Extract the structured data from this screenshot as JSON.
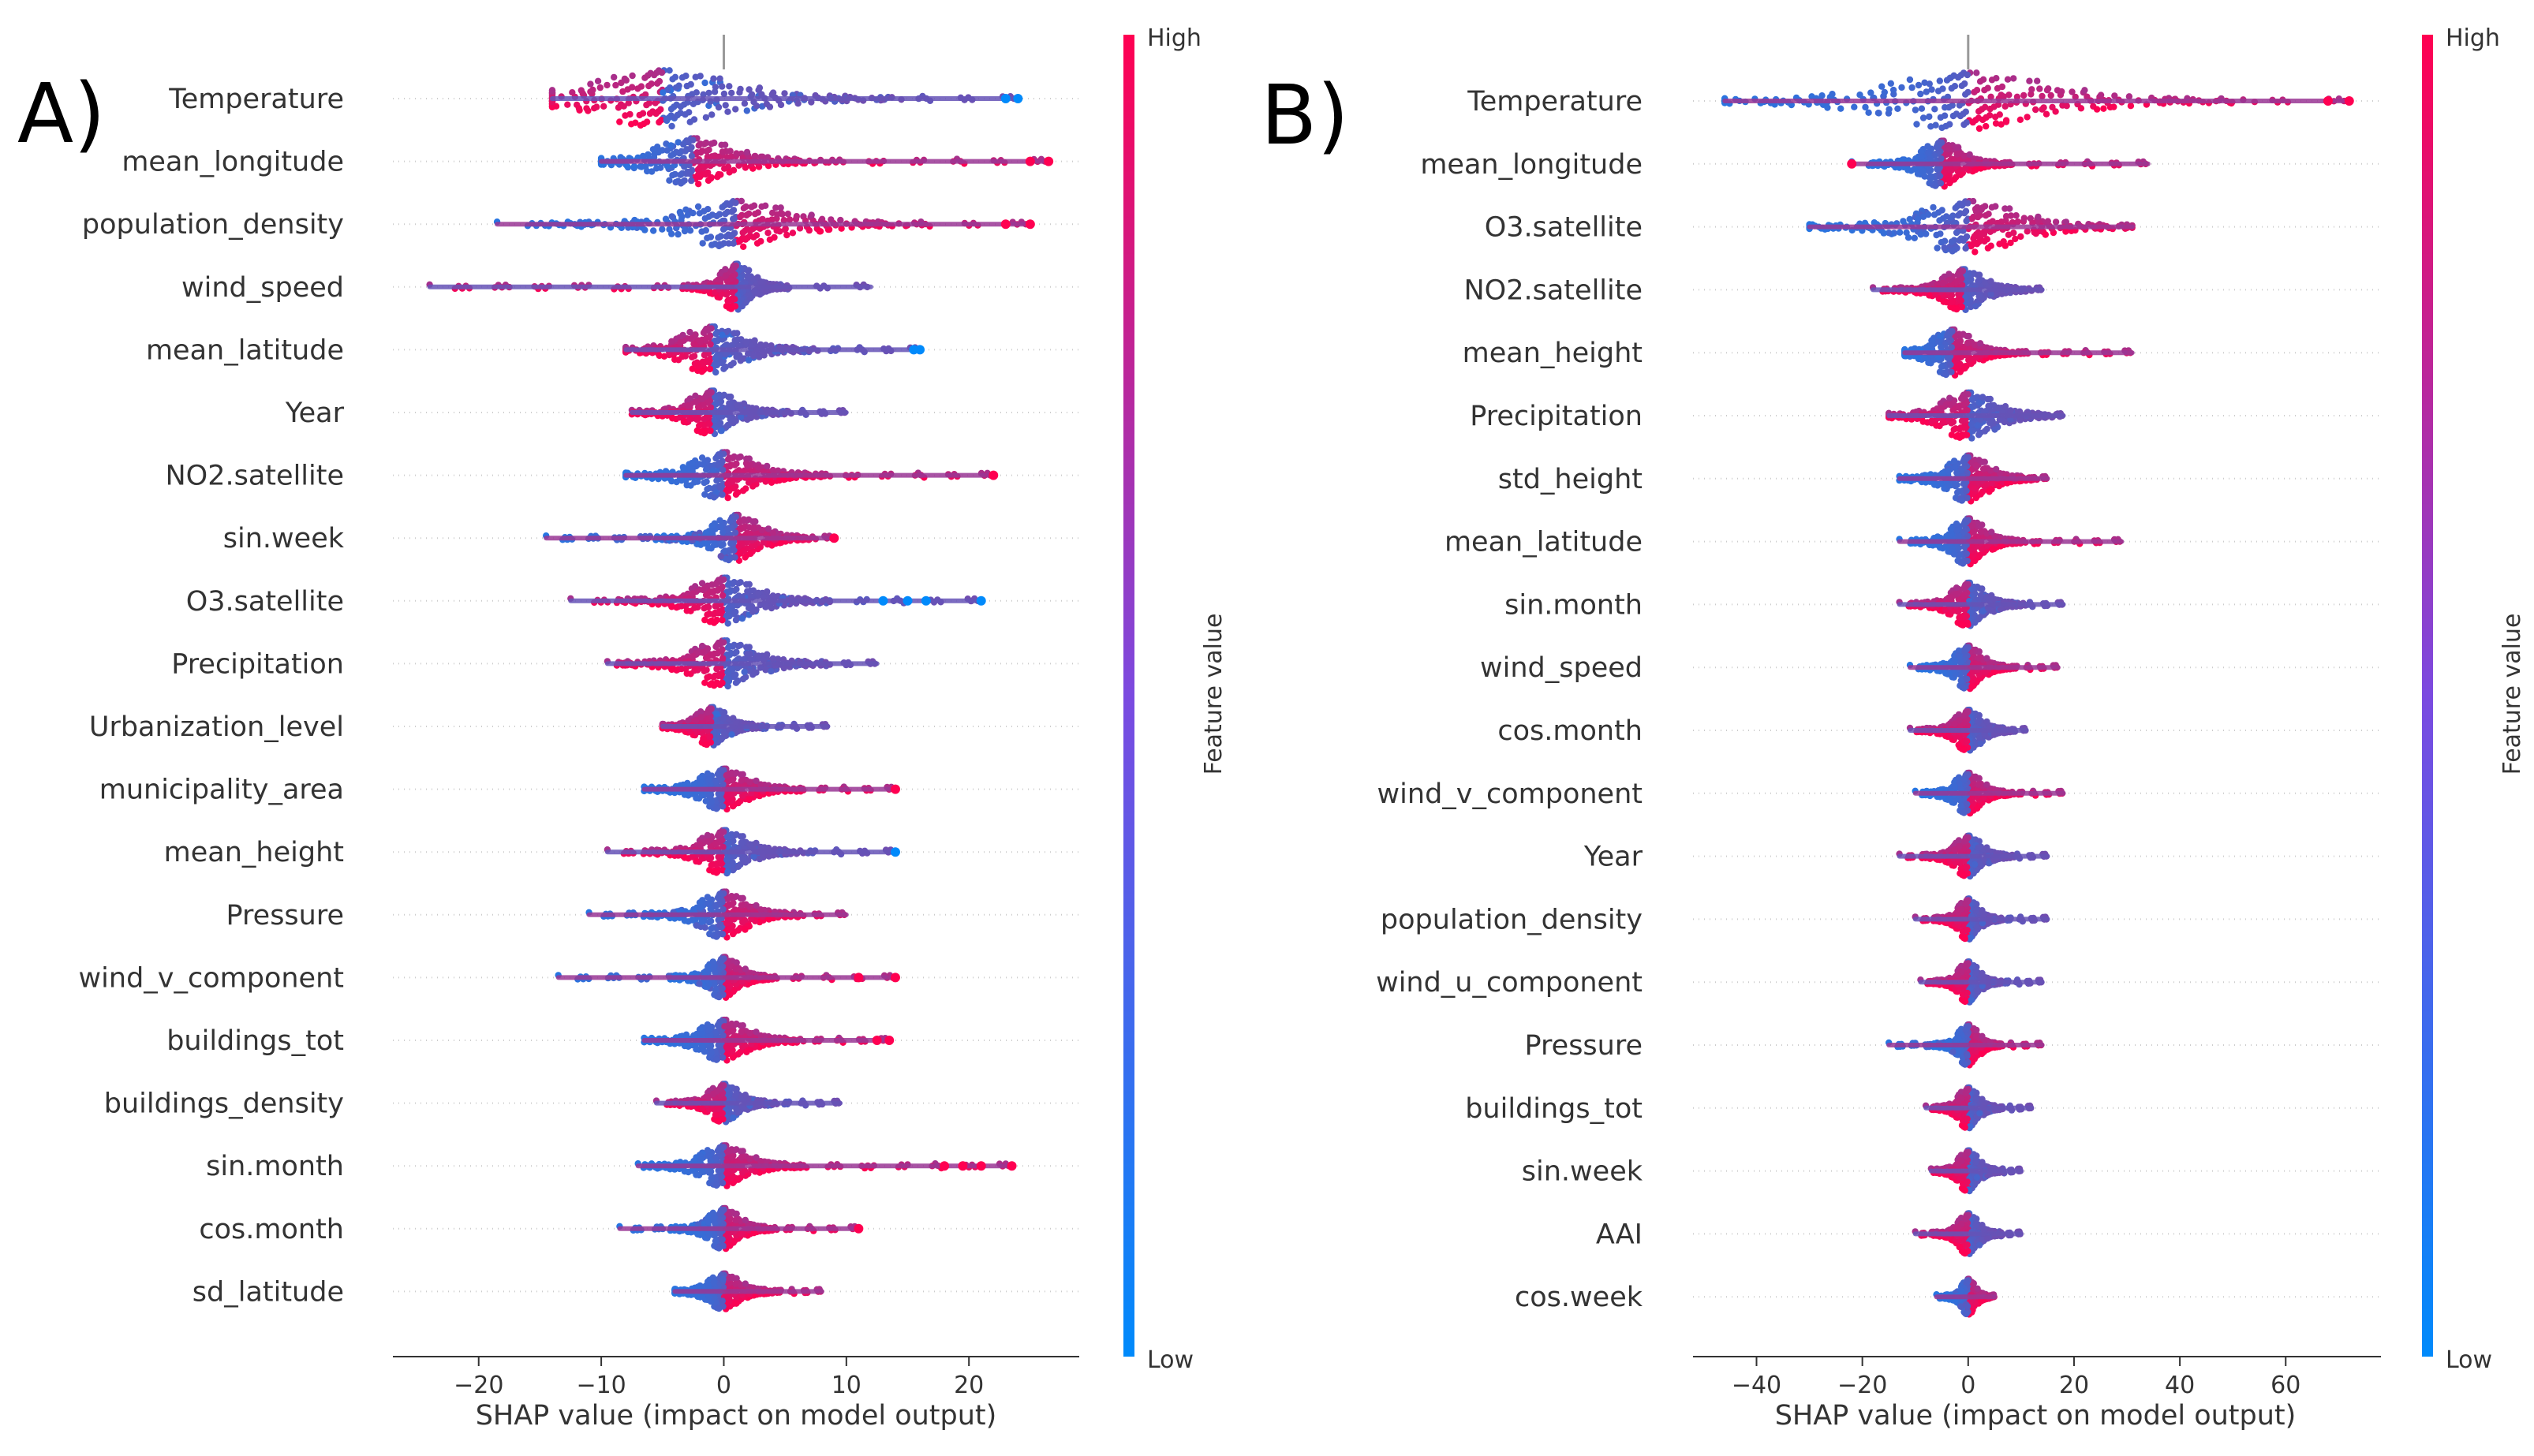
{
  "colors": {
    "low": "#008afb",
    "high": "#ff0051",
    "axis": "#333333",
    "guide": "#999999"
  },
  "chart_data": [
    {
      "type": "scatter",
      "subtype": "shap-beeswarm",
      "panel_label": "A)",
      "xlabel": "SHAP value (impact on model output)",
      "xlim": [
        -27,
        29
      ],
      "xticks": [
        -20,
        -10,
        0,
        10,
        20
      ],
      "xtick_labels": [
        "−20",
        "−10",
        "0",
        "10",
        "20"
      ],
      "colorbar": {
        "title": "Feature value",
        "high": "High",
        "low": "Low"
      },
      "features": [
        {
          "name": "Temperature",
          "min": -14,
          "max": 24,
          "center": -5,
          "density_width": 9,
          "height": 1.0,
          "high_side": "left",
          "outliers": [
            24,
            23
          ]
        },
        {
          "name": "mean_longitude",
          "min": -10,
          "max": 26.5,
          "center": -2.5,
          "density_width": 5,
          "height": 0.8,
          "high_side": "right",
          "outliers": [
            26.5,
            25
          ]
        },
        {
          "name": "population_density",
          "min": -18.5,
          "max": 25,
          "center": 1,
          "density_width": 7,
          "height": 0.8,
          "high_side": "right",
          "outliers": [
            25,
            23
          ]
        },
        {
          "name": "wind_speed",
          "min": -24,
          "max": 12,
          "center": 1,
          "density_width": 2,
          "height": 0.8,
          "high_side": "left",
          "outliers": []
        },
        {
          "name": "mean_latitude",
          "min": -8,
          "max": 16,
          "center": -1,
          "density_width": 4,
          "height": 0.8,
          "high_side": "left",
          "outliers": [
            16,
            15.5
          ]
        },
        {
          "name": "Year",
          "min": -7.5,
          "max": 10,
          "center": -1,
          "density_width": 3,
          "height": 0.75,
          "high_side": "left",
          "outliers": []
        },
        {
          "name": "NO2.satellite",
          "min": -8,
          "max": 22,
          "center": 0,
          "density_width": 4,
          "height": 0.8,
          "high_side": "right",
          "outliers": [
            22
          ]
        },
        {
          "name": "sin.week",
          "min": -14.5,
          "max": 9,
          "center": 1,
          "density_width": 3,
          "height": 0.8,
          "high_side": "right",
          "outliers": [
            9
          ]
        },
        {
          "name": "O3.satellite",
          "min": -12.5,
          "max": 21,
          "center": 0,
          "density_width": 4,
          "height": 0.8,
          "high_side": "left",
          "outliers": [
            21,
            16.5,
            15,
            13
          ]
        },
        {
          "name": "Precipitation",
          "min": -9.5,
          "max": 12.5,
          "center": 0,
          "density_width": 4,
          "height": 0.8,
          "high_side": "left",
          "outliers": []
        },
        {
          "name": "Urbanization_level",
          "min": -5,
          "max": 8.5,
          "center": -1,
          "density_width": 2,
          "height": 0.65,
          "high_side": "left",
          "outliers": []
        },
        {
          "name": "municipality_area",
          "min": -6.5,
          "max": 14,
          "center": 0,
          "density_width": 3,
          "height": 0.7,
          "high_side": "right",
          "outliers": [
            14
          ]
        },
        {
          "name": "mean_height",
          "min": -9.5,
          "max": 14,
          "center": 0,
          "density_width": 3,
          "height": 0.75,
          "high_side": "left",
          "outliers": [
            14
          ]
        },
        {
          "name": "Pressure",
          "min": -11,
          "max": 10,
          "center": 0,
          "density_width": 3,
          "height": 0.8,
          "high_side": "right",
          "outliers": []
        },
        {
          "name": "wind_v_component",
          "min": -13.5,
          "max": 14,
          "center": 0,
          "density_width": 2,
          "height": 0.7,
          "high_side": "right",
          "outliers": [
            14,
            11
          ]
        },
        {
          "name": "buildings_tot",
          "min": -6.5,
          "max": 13.5,
          "center": 0,
          "density_width": 3,
          "height": 0.7,
          "high_side": "right",
          "outliers": [
            13.5,
            12.5
          ]
        },
        {
          "name": "buildings_density",
          "min": -5.5,
          "max": 9.5,
          "center": 0,
          "density_width": 2,
          "height": 0.65,
          "high_side": "left",
          "outliers": []
        },
        {
          "name": "sin.month",
          "min": -7,
          "max": 23.5,
          "center": 0,
          "density_width": 3,
          "height": 0.7,
          "high_side": "right",
          "outliers": [
            23.5,
            21,
            19.5,
            18
          ]
        },
        {
          "name": "cos.month",
          "min": -8.5,
          "max": 11,
          "center": 0,
          "density_width": 2,
          "height": 0.7,
          "high_side": "right",
          "outliers": [
            11
          ]
        },
        {
          "name": "sd_latitude",
          "min": -4,
          "max": 8,
          "center": 0,
          "density_width": 2,
          "height": 0.6,
          "high_side": "right",
          "outliers": []
        }
      ]
    },
    {
      "type": "scatter",
      "subtype": "shap-beeswarm",
      "panel_label": "B)",
      "xlabel": "SHAP value (impact on model output)",
      "xlim": [
        -52,
        78
      ],
      "xticks": [
        -40,
        -20,
        0,
        20,
        40,
        60
      ],
      "xtick_labels": [
        "−40",
        "−20",
        "0",
        "20",
        "40",
        "60"
      ],
      "colorbar": {
        "title": "Feature value",
        "high": "High",
        "low": "Low"
      },
      "features": [
        {
          "name": "Temperature",
          "min": -46,
          "max": 72,
          "center": 0,
          "density_width": 25,
          "height": 1.0,
          "high_side": "right",
          "outliers": [
            72,
            68
          ]
        },
        {
          "name": "mean_longitude",
          "min": -22,
          "max": 34,
          "center": -5,
          "density_width": 6,
          "height": 0.8,
          "high_side": "right",
          "outliers": [
            -22
          ]
        },
        {
          "name": "O3.satellite",
          "min": -30,
          "max": 31,
          "center": 0,
          "density_width": 15,
          "height": 0.9,
          "high_side": "right",
          "outliers": []
        },
        {
          "name": "NO2.satellite",
          "min": -18,
          "max": 14,
          "center": -1,
          "density_width": 6,
          "height": 0.7,
          "high_side": "left",
          "outliers": []
        },
        {
          "name": "mean_height",
          "min": -12,
          "max": 31,
          "center": -3,
          "density_width": 6,
          "height": 0.8,
          "high_side": "right",
          "outliers": []
        },
        {
          "name": "Precipitation",
          "min": -15,
          "max": 18,
          "center": 0,
          "density_width": 8,
          "height": 0.8,
          "high_side": "left",
          "outliers": []
        },
        {
          "name": "std_height",
          "min": -13,
          "max": 15,
          "center": 0,
          "density_width": 6,
          "height": 0.8,
          "high_side": "right",
          "outliers": []
        },
        {
          "name": "mean_latitude",
          "min": -13,
          "max": 29,
          "center": 0,
          "density_width": 5,
          "height": 0.8,
          "high_side": "right",
          "outliers": []
        },
        {
          "name": "sin.month",
          "min": -13,
          "max": 18,
          "center": 0,
          "density_width": 5,
          "height": 0.75,
          "high_side": "left",
          "outliers": []
        },
        {
          "name": "wind_speed",
          "min": -11,
          "max": 17,
          "center": 0,
          "density_width": 4,
          "height": 0.75,
          "high_side": "right",
          "outliers": []
        },
        {
          "name": "cos.month",
          "min": -11,
          "max": 11,
          "center": 0,
          "density_width": 4,
          "height": 0.7,
          "high_side": "left",
          "outliers": []
        },
        {
          "name": "wind_v_component",
          "min": -10,
          "max": 18,
          "center": 0,
          "density_width": 4,
          "height": 0.7,
          "high_side": "right",
          "outliers": []
        },
        {
          "name": "Year",
          "min": -13,
          "max": 15,
          "center": 0,
          "density_width": 4,
          "height": 0.7,
          "high_side": "left",
          "outliers": []
        },
        {
          "name": "population_density",
          "min": -10,
          "max": 15,
          "center": 0,
          "density_width": 3,
          "height": 0.7,
          "high_side": "left",
          "outliers": []
        },
        {
          "name": "wind_u_component",
          "min": -9,
          "max": 14,
          "center": 0,
          "density_width": 3,
          "height": 0.7,
          "high_side": "left",
          "outliers": []
        },
        {
          "name": "Pressure",
          "min": -15,
          "max": 14,
          "center": 0,
          "density_width": 3,
          "height": 0.7,
          "high_side": "right",
          "outliers": []
        },
        {
          "name": "buildings_tot",
          "min": -8,
          "max": 12,
          "center": 0,
          "density_width": 3,
          "height": 0.7,
          "high_side": "left",
          "outliers": []
        },
        {
          "name": "sin.week",
          "min": -7,
          "max": 10,
          "center": 0,
          "density_width": 3,
          "height": 0.7,
          "high_side": "left",
          "outliers": []
        },
        {
          "name": "AAI",
          "min": -10,
          "max": 10,
          "center": 0,
          "density_width": 3,
          "height": 0.7,
          "high_side": "left",
          "outliers": []
        },
        {
          "name": "cos.week",
          "min": -6,
          "max": 5,
          "center": 0,
          "density_width": 2,
          "height": 0.6,
          "high_side": "right",
          "outliers": []
        }
      ]
    }
  ]
}
